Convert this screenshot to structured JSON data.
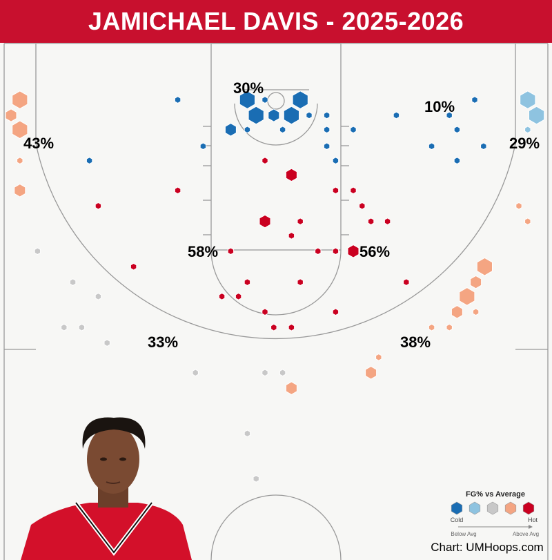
{
  "title": "JAMICHAEL DAVIS - 2025-2026",
  "chart_data": {
    "type": "hexbin shot chart",
    "units": "feet from baseline (y) and from center of court (x)",
    "colors": {
      "cold": "#1a6db3",
      "cool": "#8ec3e0",
      "average": "#c8c8c8",
      "warm": "#f4a582",
      "hot": "#ca0020"
    },
    "size_levels": {
      "1": "low frequency",
      "2": "medium frequency",
      "3": "high frequency"
    },
    "shots": {
      "cold": [
        [
          -2.6,
          5.1,
          3
        ],
        [
          -1.8,
          6.5,
          3
        ],
        [
          -0.2,
          6.5,
          2
        ],
        [
          1.4,
          6.5,
          3
        ],
        [
          2.2,
          5.1,
          3
        ],
        [
          -4.1,
          7.8,
          2
        ],
        [
          -1.0,
          5.1,
          1
        ],
        [
          -8.9,
          5.1,
          1
        ],
        [
          3.0,
          6.5,
          1
        ],
        [
          4.6,
          6.5,
          1
        ],
        [
          -2.6,
          7.8,
          1
        ],
        [
          0.6,
          7.8,
          1
        ],
        [
          4.6,
          7.8,
          1
        ],
        [
          7.0,
          7.8,
          1
        ],
        [
          -6.6,
          9.3,
          1
        ],
        [
          4.6,
          9.3,
          1
        ],
        [
          5.4,
          10.6,
          1
        ],
        [
          -16.9,
          10.6,
          1
        ],
        [
          10.9,
          6.5,
          1
        ],
        [
          15.7,
          6.5,
          1
        ],
        [
          18.0,
          5.1,
          1
        ],
        [
          16.4,
          7.8,
          1
        ],
        [
          14.1,
          9.3,
          1
        ],
        [
          16.4,
          10.6,
          1
        ],
        [
          18.8,
          9.3,
          1
        ]
      ],
      "cool": [
        [
          22.8,
          5.1,
          3
        ],
        [
          23.6,
          6.5,
          3
        ],
        [
          22.8,
          7.8,
          1
        ]
      ],
      "average": [
        [
          -21.6,
          18.8,
          1
        ],
        [
          -18.4,
          21.6,
          1
        ],
        [
          -16.1,
          22.9,
          1
        ],
        [
          -19.2,
          25.7,
          1
        ],
        [
          -17.6,
          25.7,
          1
        ],
        [
          -15.3,
          27.1,
          1
        ],
        [
          -7.3,
          29.8,
          1
        ],
        [
          -1.0,
          29.8,
          1
        ],
        [
          0.6,
          29.8,
          1
        ],
        [
          -2.6,
          35.3,
          1
        ],
        [
          -1.8,
          39.4,
          1
        ]
      ],
      "warm": [
        [
          -23.2,
          5.1,
          3
        ],
        [
          -24.0,
          6.5,
          2
        ],
        [
          -23.2,
          7.8,
          3
        ],
        [
          -23.2,
          10.6,
          1
        ],
        [
          -23.2,
          13.3,
          2
        ],
        [
          22.0,
          14.7,
          1
        ],
        [
          22.8,
          16.1,
          1
        ],
        [
          18.9,
          20.2,
          3
        ],
        [
          18.1,
          21.6,
          2
        ],
        [
          17.3,
          22.9,
          3
        ],
        [
          16.4,
          24.3,
          2
        ],
        [
          18.1,
          24.3,
          1
        ],
        [
          15.7,
          25.7,
          1
        ],
        [
          14.1,
          25.7,
          1
        ],
        [
          9.3,
          28.4,
          1
        ],
        [
          8.6,
          29.8,
          2
        ],
        [
          1.4,
          31.2,
          2
        ]
      ],
      "hot": [
        [
          -1.0,
          10.6,
          1
        ],
        [
          1.4,
          11.9,
          2
        ],
        [
          -8.9,
          13.3,
          1
        ],
        [
          5.4,
          13.3,
          1
        ],
        [
          7.0,
          13.3,
          1
        ],
        [
          -16.1,
          14.7,
          1
        ],
        [
          7.8,
          14.7,
          1
        ],
        [
          2.2,
          16.1,
          1
        ],
        [
          8.6,
          16.1,
          1
        ],
        [
          10.1,
          16.1,
          1
        ],
        [
          -1.0,
          16.1,
          2
        ],
        [
          1.4,
          17.4,
          1
        ],
        [
          -4.1,
          18.8,
          1
        ],
        [
          3.8,
          18.8,
          1
        ],
        [
          5.4,
          18.8,
          1
        ],
        [
          7.0,
          18.8,
          2
        ],
        [
          -12.9,
          20.2,
          1
        ],
        [
          -2.6,
          21.6,
          1
        ],
        [
          2.2,
          21.6,
          1
        ],
        [
          11.8,
          21.6,
          1
        ],
        [
          -4.9,
          22.9,
          1
        ],
        [
          -3.4,
          22.9,
          1
        ],
        [
          -1.0,
          24.3,
          1
        ],
        [
          5.4,
          24.3,
          1
        ],
        [
          -0.2,
          25.7,
          1
        ],
        [
          1.4,
          25.7,
          1
        ]
      ]
    },
    "zones": [
      {
        "zone": "restricted-area",
        "label": "30%"
      },
      {
        "zone": "right-wing-three",
        "label": "10%"
      },
      {
        "zone": "left-corner-three",
        "label": "43%"
      },
      {
        "zone": "right-corner-three",
        "label": "29%"
      },
      {
        "zone": "left-midrange",
        "label": "58%"
      },
      {
        "zone": "right-midrange",
        "label": "56%"
      },
      {
        "zone": "left-top-three",
        "label": "33%"
      },
      {
        "zone": "right-top-three",
        "label": "38%"
      }
    ]
  },
  "legend": {
    "title": "FG% vs Average",
    "cold_label": "Cold",
    "hot_label": "Hot",
    "below_label": "Below Avg",
    "above_label": "Above Avg"
  },
  "credit": "Chart: UMHoops.com"
}
